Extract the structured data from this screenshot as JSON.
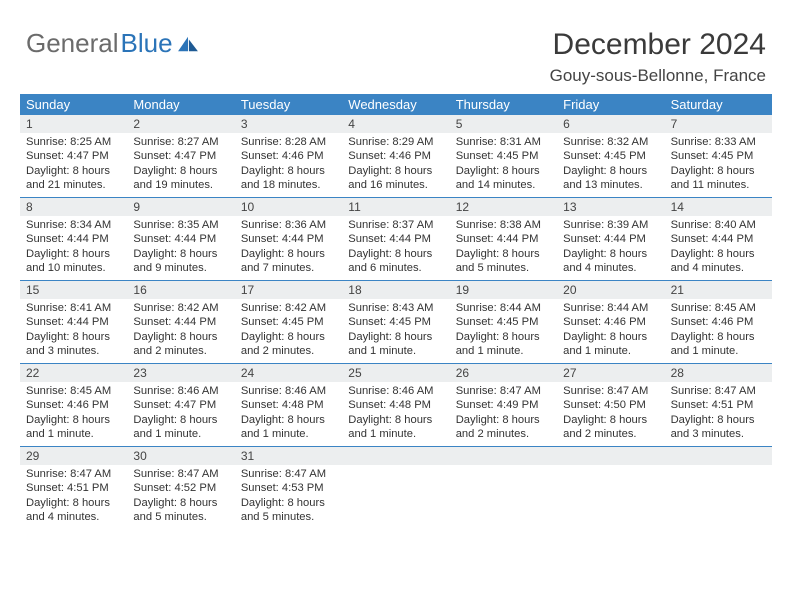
{
  "logo": {
    "part1": "General",
    "part2": "Blue"
  },
  "title": "December 2024",
  "location": "Gouy-sous-Bellonne, France",
  "colors": {
    "header_bg": "#3b84c4",
    "header_text": "#ffffff",
    "daynum_bg": "#eceeef",
    "week_border": "#3b84c4",
    "text": "#333333",
    "logo_gray": "#6b6b6b",
    "logo_blue": "#2b74b8"
  },
  "typography": {
    "title_fontsize": 30,
    "location_fontsize": 17,
    "dayname_fontsize": 13,
    "cell_fontsize": 11.2,
    "logo_fontsize": 26
  },
  "layout": {
    "columns": 7,
    "rows": 5,
    "cell_min_height": 82
  },
  "daynames": [
    "Sunday",
    "Monday",
    "Tuesday",
    "Wednesday",
    "Thursday",
    "Friday",
    "Saturday"
  ],
  "weeks": [
    [
      {
        "n": "1",
        "sr": "Sunrise: 8:25 AM",
        "ss": "Sunset: 4:47 PM",
        "dl": "Daylight: 8 hours and 21 minutes."
      },
      {
        "n": "2",
        "sr": "Sunrise: 8:27 AM",
        "ss": "Sunset: 4:47 PM",
        "dl": "Daylight: 8 hours and 19 minutes."
      },
      {
        "n": "3",
        "sr": "Sunrise: 8:28 AM",
        "ss": "Sunset: 4:46 PM",
        "dl": "Daylight: 8 hours and 18 minutes."
      },
      {
        "n": "4",
        "sr": "Sunrise: 8:29 AM",
        "ss": "Sunset: 4:46 PM",
        "dl": "Daylight: 8 hours and 16 minutes."
      },
      {
        "n": "5",
        "sr": "Sunrise: 8:31 AM",
        "ss": "Sunset: 4:45 PM",
        "dl": "Daylight: 8 hours and 14 minutes."
      },
      {
        "n": "6",
        "sr": "Sunrise: 8:32 AM",
        "ss": "Sunset: 4:45 PM",
        "dl": "Daylight: 8 hours and 13 minutes."
      },
      {
        "n": "7",
        "sr": "Sunrise: 8:33 AM",
        "ss": "Sunset: 4:45 PM",
        "dl": "Daylight: 8 hours and 11 minutes."
      }
    ],
    [
      {
        "n": "8",
        "sr": "Sunrise: 8:34 AM",
        "ss": "Sunset: 4:44 PM",
        "dl": "Daylight: 8 hours and 10 minutes."
      },
      {
        "n": "9",
        "sr": "Sunrise: 8:35 AM",
        "ss": "Sunset: 4:44 PM",
        "dl": "Daylight: 8 hours and 9 minutes."
      },
      {
        "n": "10",
        "sr": "Sunrise: 8:36 AM",
        "ss": "Sunset: 4:44 PM",
        "dl": "Daylight: 8 hours and 7 minutes."
      },
      {
        "n": "11",
        "sr": "Sunrise: 8:37 AM",
        "ss": "Sunset: 4:44 PM",
        "dl": "Daylight: 8 hours and 6 minutes."
      },
      {
        "n": "12",
        "sr": "Sunrise: 8:38 AM",
        "ss": "Sunset: 4:44 PM",
        "dl": "Daylight: 8 hours and 5 minutes."
      },
      {
        "n": "13",
        "sr": "Sunrise: 8:39 AM",
        "ss": "Sunset: 4:44 PM",
        "dl": "Daylight: 8 hours and 4 minutes."
      },
      {
        "n": "14",
        "sr": "Sunrise: 8:40 AM",
        "ss": "Sunset: 4:44 PM",
        "dl": "Daylight: 8 hours and 4 minutes."
      }
    ],
    [
      {
        "n": "15",
        "sr": "Sunrise: 8:41 AM",
        "ss": "Sunset: 4:44 PM",
        "dl": "Daylight: 8 hours and 3 minutes."
      },
      {
        "n": "16",
        "sr": "Sunrise: 8:42 AM",
        "ss": "Sunset: 4:44 PM",
        "dl": "Daylight: 8 hours and 2 minutes."
      },
      {
        "n": "17",
        "sr": "Sunrise: 8:42 AM",
        "ss": "Sunset: 4:45 PM",
        "dl": "Daylight: 8 hours and 2 minutes."
      },
      {
        "n": "18",
        "sr": "Sunrise: 8:43 AM",
        "ss": "Sunset: 4:45 PM",
        "dl": "Daylight: 8 hours and 1 minute."
      },
      {
        "n": "19",
        "sr": "Sunrise: 8:44 AM",
        "ss": "Sunset: 4:45 PM",
        "dl": "Daylight: 8 hours and 1 minute."
      },
      {
        "n": "20",
        "sr": "Sunrise: 8:44 AM",
        "ss": "Sunset: 4:46 PM",
        "dl": "Daylight: 8 hours and 1 minute."
      },
      {
        "n": "21",
        "sr": "Sunrise: 8:45 AM",
        "ss": "Sunset: 4:46 PM",
        "dl": "Daylight: 8 hours and 1 minute."
      }
    ],
    [
      {
        "n": "22",
        "sr": "Sunrise: 8:45 AM",
        "ss": "Sunset: 4:46 PM",
        "dl": "Daylight: 8 hours and 1 minute."
      },
      {
        "n": "23",
        "sr": "Sunrise: 8:46 AM",
        "ss": "Sunset: 4:47 PM",
        "dl": "Daylight: 8 hours and 1 minute."
      },
      {
        "n": "24",
        "sr": "Sunrise: 8:46 AM",
        "ss": "Sunset: 4:48 PM",
        "dl": "Daylight: 8 hours and 1 minute."
      },
      {
        "n": "25",
        "sr": "Sunrise: 8:46 AM",
        "ss": "Sunset: 4:48 PM",
        "dl": "Daylight: 8 hours and 1 minute."
      },
      {
        "n": "26",
        "sr": "Sunrise: 8:47 AM",
        "ss": "Sunset: 4:49 PM",
        "dl": "Daylight: 8 hours and 2 minutes."
      },
      {
        "n": "27",
        "sr": "Sunrise: 8:47 AM",
        "ss": "Sunset: 4:50 PM",
        "dl": "Daylight: 8 hours and 2 minutes."
      },
      {
        "n": "28",
        "sr": "Sunrise: 8:47 AM",
        "ss": "Sunset: 4:51 PM",
        "dl": "Daylight: 8 hours and 3 minutes."
      }
    ],
    [
      {
        "n": "29",
        "sr": "Sunrise: 8:47 AM",
        "ss": "Sunset: 4:51 PM",
        "dl": "Daylight: 8 hours and 4 minutes."
      },
      {
        "n": "30",
        "sr": "Sunrise: 8:47 AM",
        "ss": "Sunset: 4:52 PM",
        "dl": "Daylight: 8 hours and 5 minutes."
      },
      {
        "n": "31",
        "sr": "Sunrise: 8:47 AM",
        "ss": "Sunset: 4:53 PM",
        "dl": "Daylight: 8 hours and 5 minutes."
      },
      {
        "empty": true
      },
      {
        "empty": true
      },
      {
        "empty": true
      },
      {
        "empty": true
      }
    ]
  ]
}
